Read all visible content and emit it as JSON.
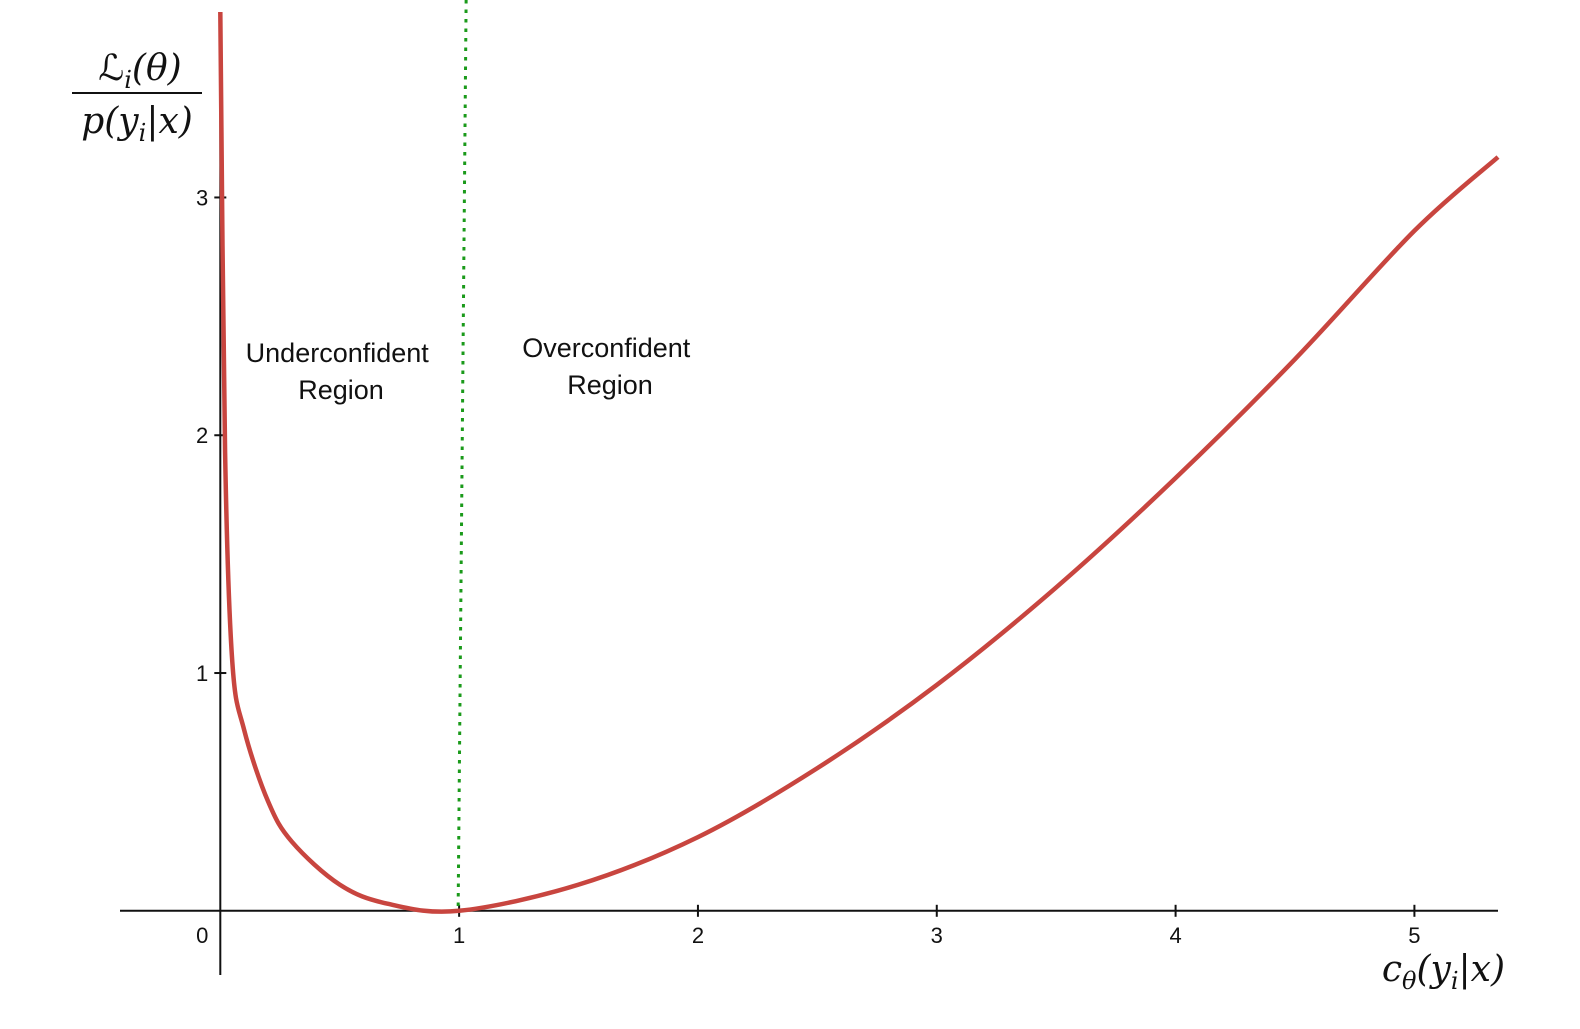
{
  "chart_data": {
    "type": "line",
    "xlabel": "c_θ(y_i|x)",
    "ylabel": "L_i(θ) / p(y_i|x)",
    "ylabel_parts": {
      "numerator": "ℒ",
      "numerator_sub": "i",
      "numerator_rest": "(θ)",
      "denominator": "p(y",
      "denominator_sub": "i",
      "denominator_rest": "|x)"
    },
    "xlabel_parts": {
      "base": "c",
      "base_sub": "θ",
      "rest": "(y",
      "rest_sub": "i",
      "end": "|x)"
    },
    "xlim": [
      -0.42,
      5.35
    ],
    "ylim": [
      -0.27,
      3.78
    ],
    "x_ticks": [
      0,
      1,
      2,
      3,
      4,
      5
    ],
    "y_ticks": [
      1,
      2,
      3
    ],
    "x_tick_labels": [
      "0",
      "1",
      "2",
      "3",
      "4",
      "5"
    ],
    "y_tick_labels": [
      "1",
      "2",
      "3"
    ],
    "series": [
      {
        "color": "#c8453f",
        "x": [
          0.0,
          0.02,
          0.05,
          0.1,
          0.2,
          0.3,
          0.5,
          0.7,
          1.0,
          1.5,
          2.0,
          2.5,
          3.0,
          3.5,
          4.0,
          4.5,
          5.0,
          5.35
        ],
        "y": [
          3.78,
          1.93,
          1.05,
          0.76,
          0.46,
          0.29,
          0.11,
          0.03,
          0.0,
          0.11,
          0.31,
          0.6,
          0.95,
          1.36,
          1.82,
          2.32,
          2.86,
          3.17
        ]
      }
    ],
    "reference_line": {
      "x": 1,
      "style": "dotted",
      "color": "#1a9a1a"
    },
    "annotations": [
      {
        "lines": [
          "Underconfident",
          "Region"
        ]
      },
      {
        "lines": [
          "Overconfident",
          "Region"
        ]
      }
    ],
    "grid": false
  }
}
